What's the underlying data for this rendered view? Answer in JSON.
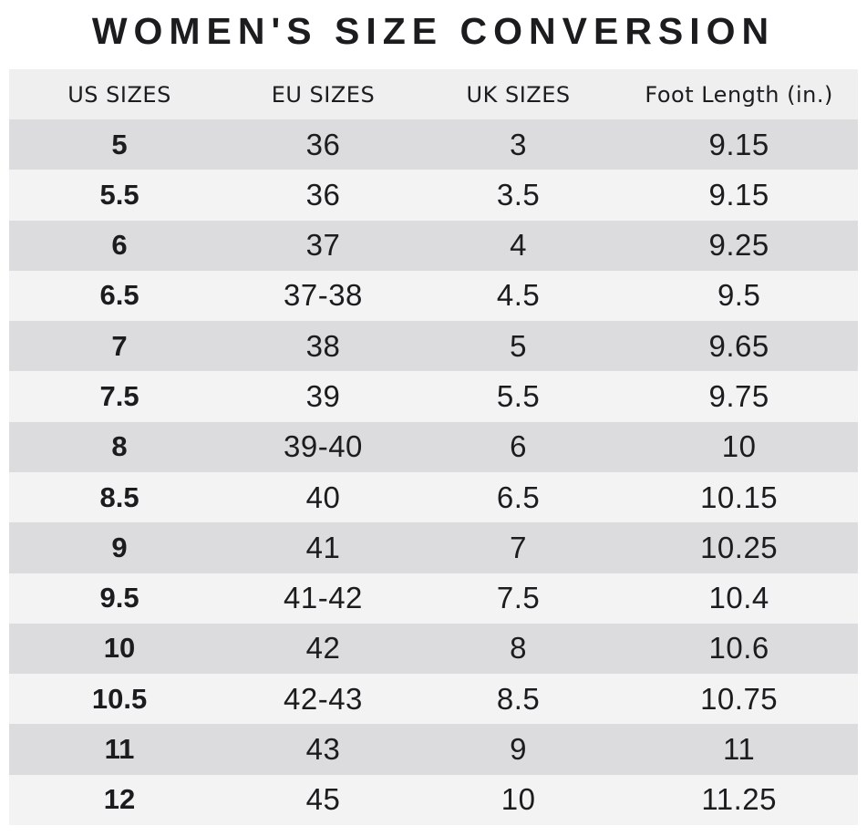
{
  "chart_data": {
    "type": "table",
    "title": "WOMEN'S SIZE CONVERSION",
    "columns": [
      "US SIZES",
      "EU SIZES",
      "UK SIZES",
      "Foot Length (in.)"
    ],
    "rows": [
      [
        "5",
        "36",
        "3",
        "9.15"
      ],
      [
        "5.5",
        "36",
        "3.5",
        "9.15"
      ],
      [
        "6",
        "37",
        "4",
        "9.25"
      ],
      [
        "6.5",
        "37-38",
        "4.5",
        "9.5"
      ],
      [
        "7",
        "38",
        "5",
        "9.65"
      ],
      [
        "7.5",
        "39",
        "5.5",
        "9.75"
      ],
      [
        "8",
        "39-40",
        "6",
        "10"
      ],
      [
        "8.5",
        "40",
        "6.5",
        "10.15"
      ],
      [
        "9",
        "41",
        "7",
        "10.25"
      ],
      [
        "9.5",
        "41-42",
        "7.5",
        "10.4"
      ],
      [
        "10",
        "42",
        "8",
        "10.6"
      ],
      [
        "10.5",
        "42-43",
        "8.5",
        "10.75"
      ],
      [
        "11",
        "43",
        "9",
        "11"
      ],
      [
        "12",
        "45",
        "10",
        "11.25"
      ]
    ],
    "layout": {
      "grid": false,
      "row_striping": "alternating, first data row dark"
    }
  },
  "colors": {
    "row_dark": "#dcdcde",
    "row_light": "#f3f3f4",
    "header_bg": "#efeff0",
    "text": "#1c1c1e",
    "page_bg": "#ffffff"
  }
}
